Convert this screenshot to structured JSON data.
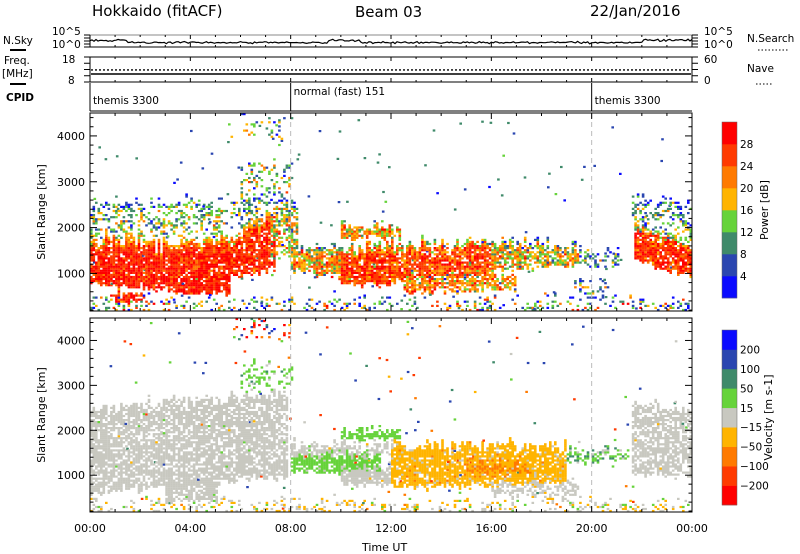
{
  "header": {
    "station": "Hokkaido (fitACF)",
    "beam": "Beam 03",
    "date": "22/Jan/2016"
  },
  "noise_panel": {
    "left_label": "N.Sky",
    "right_label": "N.Search",
    "left_ticks": [
      "10^5",
      "10^0"
    ],
    "right_ticks": [
      "10^5",
      "10^0"
    ]
  },
  "freq_panel": {
    "label_1": "Freq.",
    "label_2": "[MHz]",
    "right_label": "Nave",
    "left_ticks": [
      "18",
      "8"
    ],
    "right_ticks": [
      "60",
      "0"
    ],
    "freq_mhz": 11.2,
    "freq_range": [
      8,
      18
    ],
    "nave": 29,
    "nave_range": [
      0,
      60
    ]
  },
  "cpid": {
    "label": "CPID",
    "segments": [
      {
        "label": "themis 3300",
        "start_hour": 0
      },
      {
        "label": "normal (fast) 151",
        "start_hour": 8
      },
      {
        "label": "themis 3300",
        "start_hour": 20
      }
    ]
  },
  "xaxis": {
    "label": "Time UT",
    "ticks": [
      "00:00",
      "04:00",
      "08:00",
      "12:00",
      "16:00",
      "20:00",
      "00:00"
    ],
    "xlim_hours": [
      0,
      24
    ]
  },
  "chart_data": [
    {
      "type": "heatmap",
      "name": "power",
      "xlabel": "Time UT",
      "ylabel": "Slant Range [km]",
      "yticks": [
        "1000",
        "2000",
        "3000",
        "4000"
      ],
      "ylim": [
        180,
        4500
      ],
      "xlim": [
        0,
        24
      ],
      "colorbar": {
        "label": "Power [dB]",
        "ticks": [
          "4",
          "8",
          "12",
          "16",
          "20",
          "24",
          "28"
        ],
        "bounds": [
          -100,
          4,
          8,
          12,
          16,
          20,
          24,
          28,
          1000
        ],
        "colors": [
          "#0a0aff",
          "#2a46b0",
          "#3f8a6a",
          "#66d33a",
          "#ffb400",
          "#ff7a00",
          "#ff3a00",
          "#ff0000"
        ]
      },
      "patches": [
        {
          "t": [
            0,
            7.8
          ],
          "lo": [
            1700,
            2000
          ],
          "hi": [
            2500,
            2650
          ],
          "v": 13,
          "sd": 5,
          "d": 0.35
        },
        {
          "t": [
            6,
            8
          ],
          "lo": [
            2700,
            2800
          ],
          "hi": [
            3500,
            3400
          ],
          "v": 13,
          "sd": 5,
          "d": 0.25
        },
        {
          "t": [
            5.5,
            8
          ],
          "lo": [
            3900,
            3900
          ],
          "hi": [
            4450,
            4450
          ],
          "v": 12,
          "sd": 6,
          "d": 0.12
        },
        {
          "t": [
            0,
            3.5
          ],
          "lo": [
            800,
            600
          ],
          "hi": [
            1750,
            1650
          ],
          "v": 28,
          "sd": 3,
          "d": 0.9
        },
        {
          "t": [
            3.5,
            5.5
          ],
          "lo": [
            550,
            600
          ],
          "hi": [
            1650,
            1800
          ],
          "v": 28,
          "sd": 3,
          "d": 0.9
        },
        {
          "t": [
            5.5,
            7.3
          ],
          "lo": [
            900,
            1100
          ],
          "hi": [
            1750,
            2300
          ],
          "v": 27,
          "sd": 3,
          "d": 0.85
        },
        {
          "t": [
            7.2,
            8.2
          ],
          "lo": [
            1300,
            1500
          ],
          "hi": [
            2300,
            2600
          ],
          "v": 17,
          "sd": 5,
          "d": 0.6
        },
        {
          "t": [
            0.8,
            2.2
          ],
          "lo": [
            380,
            420
          ],
          "hi": [
            560,
            520
          ],
          "v": 28,
          "sd": 3,
          "d": 0.85
        },
        {
          "t": [
            8,
            10
          ],
          "lo": [
            1050,
            950
          ],
          "hi": [
            1550,
            1550
          ],
          "v": 20,
          "sd": 5,
          "d": 0.8
        },
        {
          "t": [
            10,
            12
          ],
          "lo": [
            800,
            750
          ],
          "hi": [
            1550,
            1600
          ],
          "v": 26,
          "sd": 4,
          "d": 0.9
        },
        {
          "t": [
            12,
            16
          ],
          "lo": [
            850,
            1000
          ],
          "hi": [
            1600,
            1650
          ],
          "v": 25,
          "sd": 4,
          "d": 0.85
        },
        {
          "t": [
            12.5,
            17
          ],
          "lo": [
            600,
            650
          ],
          "hi": [
            900,
            950
          ],
          "v": 21,
          "sd": 5,
          "d": 0.7
        },
        {
          "t": [
            16,
            19.5
          ],
          "lo": [
            1100,
            1200
          ],
          "hi": [
            1650,
            1600
          ],
          "v": 18,
          "sd": 5,
          "d": 0.75
        },
        {
          "t": [
            19.5,
            21.2
          ],
          "lo": [
            1200,
            1150
          ],
          "hi": [
            1500,
            1450
          ],
          "v": 10,
          "sd": 5,
          "d": 0.35
        },
        {
          "t": [
            19.3,
            20.8
          ],
          "lo": [
            450,
            450
          ],
          "hi": [
            900,
            800
          ],
          "v": 11,
          "sd": 6,
          "d": 0.25
        },
        {
          "t": [
            10,
            12.3
          ],
          "lo": [
            1780,
            1800
          ],
          "hi": [
            2000,
            2000
          ],
          "v": 20,
          "sd": 5,
          "d": 0.8
        },
        {
          "t": [
            21.7,
            24
          ],
          "lo": [
            1300,
            950
          ],
          "hi": [
            2050,
            1550
          ],
          "v": 27,
          "sd": 4,
          "d": 0.85
        },
        {
          "t": [
            21.6,
            24
          ],
          "lo": [
            2000,
            1600
          ],
          "hi": [
            2700,
            2500
          ],
          "v": 11,
          "sd": 5,
          "d": 0.35
        },
        {
          "t": [
            0,
            24
          ],
          "lo": [
            190,
            190
          ],
          "hi": [
            420,
            420
          ],
          "v": 13,
          "sd": 8,
          "d": 0.25
        }
      ]
    },
    {
      "type": "heatmap",
      "name": "velocity",
      "xlabel": "Time UT",
      "ylabel": "Slant Range [km]",
      "yticks": [
        "1000",
        "2000",
        "3000",
        "4000"
      ],
      "ylim": [
        180,
        4500
      ],
      "xlim": [
        0,
        24
      ],
      "colorbar": {
        "label": "Velocity [m s-1]",
        "ticks": [
          "200",
          "100",
          "50",
          "15",
          "-15",
          "-50",
          "-100",
          "-200"
        ],
        "bounds": [
          -10000,
          -200,
          -100,
          -50,
          -15,
          15,
          50,
          100,
          200,
          10000
        ],
        "colors": [
          "#ff0000",
          "#ff3a00",
          "#ff7a00",
          "#ffb400",
          "#c8c8c0",
          "#66d33a",
          "#3f8a6a",
          "#2a46b0",
          "#0a0aff"
        ]
      },
      "patches": [
        {
          "t": [
            0,
            7.8
          ],
          "lo": [
            600,
            1000
          ],
          "hi": [
            2500,
            2800
          ],
          "v": 0,
          "sd": 6,
          "d": 0.75
        },
        {
          "t": [
            3,
            5
          ],
          "lo": [
            450,
            450
          ],
          "hi": [
            900,
            900
          ],
          "v": 0,
          "sd": 6,
          "d": 0.8
        },
        {
          "t": [
            6,
            8
          ],
          "lo": [
            2900,
            3000
          ],
          "hi": [
            3500,
            3400
          ],
          "v": 30,
          "sd": 15,
          "d": 0.3
        },
        {
          "t": [
            5.5,
            8
          ],
          "lo": [
            4000,
            4000
          ],
          "hi": [
            4450,
            4450
          ],
          "v": -150,
          "sd": 200,
          "d": 0.15
        },
        {
          "t": [
            8,
            11.5
          ],
          "lo": [
            1100,
            1050
          ],
          "hi": [
            1500,
            1450
          ],
          "v": 30,
          "sd": 8,
          "d": 0.85
        },
        {
          "t": [
            8,
            12
          ],
          "lo": [
            1450,
            1450
          ],
          "hi": [
            1700,
            1700
          ],
          "v": 0,
          "sd": 6,
          "d": 0.6
        },
        {
          "t": [
            10,
            12
          ],
          "lo": [
            800,
            800
          ],
          "hi": [
            1150,
            1150
          ],
          "v": 0,
          "sd": 6,
          "d": 0.85
        },
        {
          "t": [
            10,
            12.3
          ],
          "lo": [
            1820,
            1820
          ],
          "hi": [
            2000,
            2000
          ],
          "v": 30,
          "sd": 8,
          "d": 0.8
        },
        {
          "t": [
            12,
            19
          ],
          "lo": [
            750,
            850
          ],
          "hi": [
            1650,
            1650
          ],
          "v": -30,
          "sd": 10,
          "d": 0.85
        },
        {
          "t": [
            15,
            17.5
          ],
          "lo": [
            1000,
            1050
          ],
          "hi": [
            1300,
            1250
          ],
          "v": -65,
          "sd": 15,
          "d": 0.6
        },
        {
          "t": [
            16,
            19.5
          ],
          "lo": [
            550,
            550
          ],
          "hi": [
            850,
            850
          ],
          "v": 0,
          "sd": 6,
          "d": 0.5
        },
        {
          "t": [
            19,
            21.5
          ],
          "lo": [
            1300,
            1300
          ],
          "hi": [
            1600,
            1550
          ],
          "v": 40,
          "sd": 25,
          "d": 0.45
        },
        {
          "t": [
            21.6,
            24
          ],
          "lo": [
            1000,
            1000
          ],
          "hi": [
            2600,
            2400
          ],
          "v": 0,
          "sd": 6,
          "d": 0.7
        },
        {
          "t": [
            0,
            24
          ],
          "lo": [
            190,
            190
          ],
          "hi": [
            400,
            400
          ],
          "v": -10,
          "sd": 20,
          "d": 0.25
        }
      ]
    }
  ]
}
